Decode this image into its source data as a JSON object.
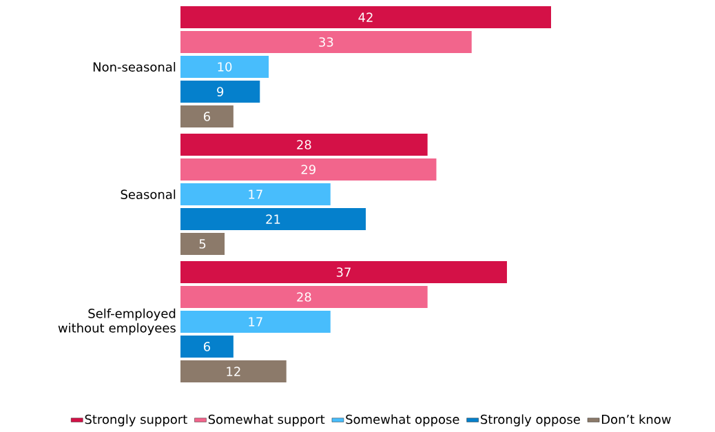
{
  "chart_data": {
    "type": "bar",
    "orientation": "horizontal",
    "categories": [
      "Non-seasonal",
      "Seasonal",
      "Self-employed without employees"
    ],
    "series": [
      {
        "name": "Strongly support",
        "color": "#d41147",
        "values": [
          42,
          28,
          37
        ]
      },
      {
        "name": "Somewhat support",
        "color": "#f2658c",
        "values": [
          33,
          29,
          28
        ]
      },
      {
        "name": "Somewhat oppose",
        "color": "#48bdfc",
        "values": [
          10,
          17,
          17
        ]
      },
      {
        "name": "Strongly oppose",
        "color": "#0580cc",
        "values": [
          9,
          21,
          6
        ]
      },
      {
        "name": "Don’t know",
        "color": "#8c7a6a",
        "values": [
          6,
          5,
          12
        ]
      }
    ],
    "data_labels": true,
    "legend": "bottom"
  }
}
